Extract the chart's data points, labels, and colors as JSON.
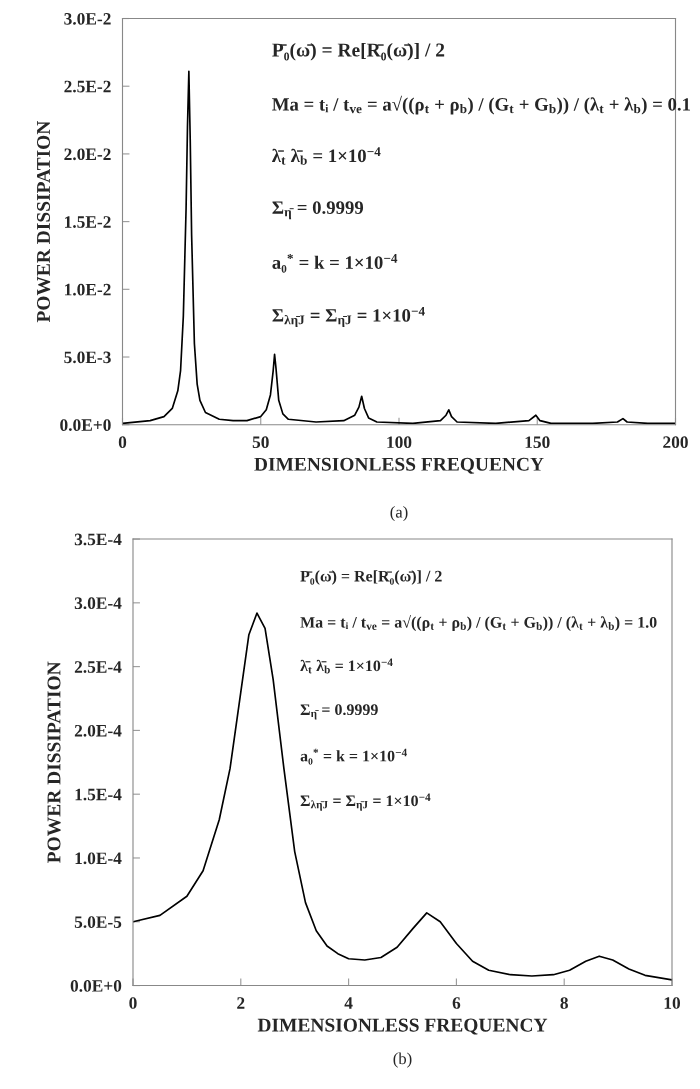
{
  "chart_data": [
    {
      "type": "line",
      "xlabel": "DIMENSIONLESS FREQUENCY",
      "ylabel": "POWER DISSIPATION",
      "series": [
        {
          "color": "#000000",
          "x": [
            0,
            10,
            15,
            18,
            20,
            21,
            22,
            23,
            23.5,
            24,
            24.5,
            25,
            26,
            27,
            28,
            30,
            35,
            40,
            45,
            50,
            52,
            53.5,
            54.5,
            55,
            55.5,
            56.5,
            58,
            60,
            70,
            80,
            84,
            85.5,
            86.5,
            87.5,
            89,
            92,
            105,
            115,
            117,
            118,
            119,
            121,
            135,
            147,
            149.5,
            151,
            155,
            170,
            179,
            181,
            182.5,
            190,
            200
          ],
          "values": [
            0.0001,
            0.0003,
            0.0006,
            0.0012,
            0.0025,
            0.004,
            0.008,
            0.016,
            0.022,
            0.0261,
            0.021,
            0.014,
            0.006,
            0.003,
            0.0018,
            0.0009,
            0.0004,
            0.0003,
            0.0003,
            0.0006,
            0.0011,
            0.0022,
            0.004,
            0.0052,
            0.0042,
            0.0018,
            0.0008,
            0.0004,
            0.0002,
            0.0003,
            0.0007,
            0.0013,
            0.0021,
            0.0012,
            0.0005,
            0.0002,
            0.0001,
            0.0003,
            0.0007,
            0.0011,
            0.0006,
            0.0002,
            0.0001,
            0.0003,
            0.0007,
            0.0003,
            0.0001,
            0.0001,
            0.0002,
            0.00045,
            0.0002,
            0.0001,
            0.0001
          ]
        }
      ],
      "xlim": [
        0,
        200
      ],
      "xticks": [
        0,
        50,
        100,
        150,
        200
      ],
      "ylim": [
        0,
        0.03
      ],
      "yticks": [
        {
          "value": 0,
          "label": "0.0E+0"
        },
        {
          "value": 0.005,
          "label": "5.0E-3"
        },
        {
          "value": 0.01,
          "label": "1.0E-2"
        },
        {
          "value": 0.015,
          "label": "1.5E-2"
        },
        {
          "value": 0.02,
          "label": "2.0E-2"
        },
        {
          "value": 0.025,
          "label": "2.5E-2"
        },
        {
          "value": 0.03,
          "label": "3.0E-2"
        }
      ],
      "marker": "none",
      "line_style": "solid",
      "annotations": [
        "P̄₀(ω̄) = Re[R̄₀(ω̄)] / 2",
        "Ma = tᵢ / t$_{ve}$ = a√((ρ$_{t}$ + ρ$_{b}$) / (G$_{t}$ + G$_{b}$)) / (λ$_{t}$ + λ$_{b}$) = 0.1",
        "λ̄$_{t}$ λ̄$_{b}$ = 1×10$^{−4}$",
        "Σ$_{η̄}$ = 0.9999",
        "a₀$^{*}$ = k = 1×10$^{−4}$",
        "Σ$_{λη̄J}$ = Σ$_{η̄J}$ = 1×10$^{−4}$",
        "(a)"
      ]
    },
    {
      "type": "line",
      "xlabel": "DIMENSIONLESS FREQUENCY",
      "ylabel": "POWER DISSIPATION",
      "series": [
        {
          "color": "#000000",
          "x": [
            0,
            0.5,
            1.0,
            1.3,
            1.6,
            1.8,
            2.0,
            2.15,
            2.3,
            2.45,
            2.6,
            2.8,
            3.0,
            3.2,
            3.4,
            3.6,
            3.8,
            4.0,
            4.3,
            4.6,
            4.9,
            5.2,
            5.45,
            5.7,
            6.0,
            6.3,
            6.6,
            7.0,
            7.4,
            7.8,
            8.1,
            8.4,
            8.65,
            8.9,
            9.2,
            9.5,
            10
          ],
          "values": [
            5e-05,
            5.5e-05,
            7e-05,
            9e-05,
            0.00013,
            0.00017,
            0.00023,
            0.000275,
            0.000292,
            0.00028,
            0.00024,
            0.00017,
            0.000105,
            6.5e-05,
            4.3e-05,
            3.1e-05,
            2.5e-05,
            2.1e-05,
            2e-05,
            2.2e-05,
            3e-05,
            4.5e-05,
            5.7e-05,
            5e-05,
            3.3e-05,
            1.9e-05,
            1.2e-05,
            8.5e-06,
            7.5e-06,
            8.5e-06,
            1.2e-05,
            1.9e-05,
            2.3e-05,
            2e-05,
            1.3e-05,
            8e-06,
            4.5e-06
          ]
        }
      ],
      "xlim": [
        0,
        10
      ],
      "xticks": [
        0,
        2,
        4,
        6,
        8,
        10
      ],
      "ylim": [
        0,
        0.00035
      ],
      "yticks": [
        {
          "value": 0,
          "label": "0.0E+0"
        },
        {
          "value": 5e-05,
          "label": "5.0E-5"
        },
        {
          "value": 0.0001,
          "label": "1.0E-4"
        },
        {
          "value": 0.00015,
          "label": "1.5E-4"
        },
        {
          "value": 0.0002,
          "label": "2.0E-4"
        },
        {
          "value": 0.00025,
          "label": "2.5E-4"
        },
        {
          "value": 0.0003,
          "label": "3.0E-4"
        },
        {
          "value": 0.00035,
          "label": "3.5E-4"
        }
      ],
      "marker": "none",
      "line_style": "solid",
      "annotations": [
        "P̄₀(ω̄) = Re[R̄₀(ω̄)] / 2",
        "Ma = tᵢ / t$_{ve}$ = a√((ρ$_{t}$ + ρ$_{b}$) / (G$_{t}$ + G$_{b}$)) / (λ$_{t}$ + λ$_{b}$) = 1.0",
        "λ̄$_{t}$ λ̄$_{b}$ = 1×10$^{−4}$",
        "Σ$_{η̄}$ = 0.9999",
        "a₀$^{*}$ = k = 1×10$^{−4}$",
        "Σ$_{λη̄J}$ = Σ$_{η̄J}$ = 1×10$^{−4}$",
        "(b)"
      ]
    }
  ]
}
